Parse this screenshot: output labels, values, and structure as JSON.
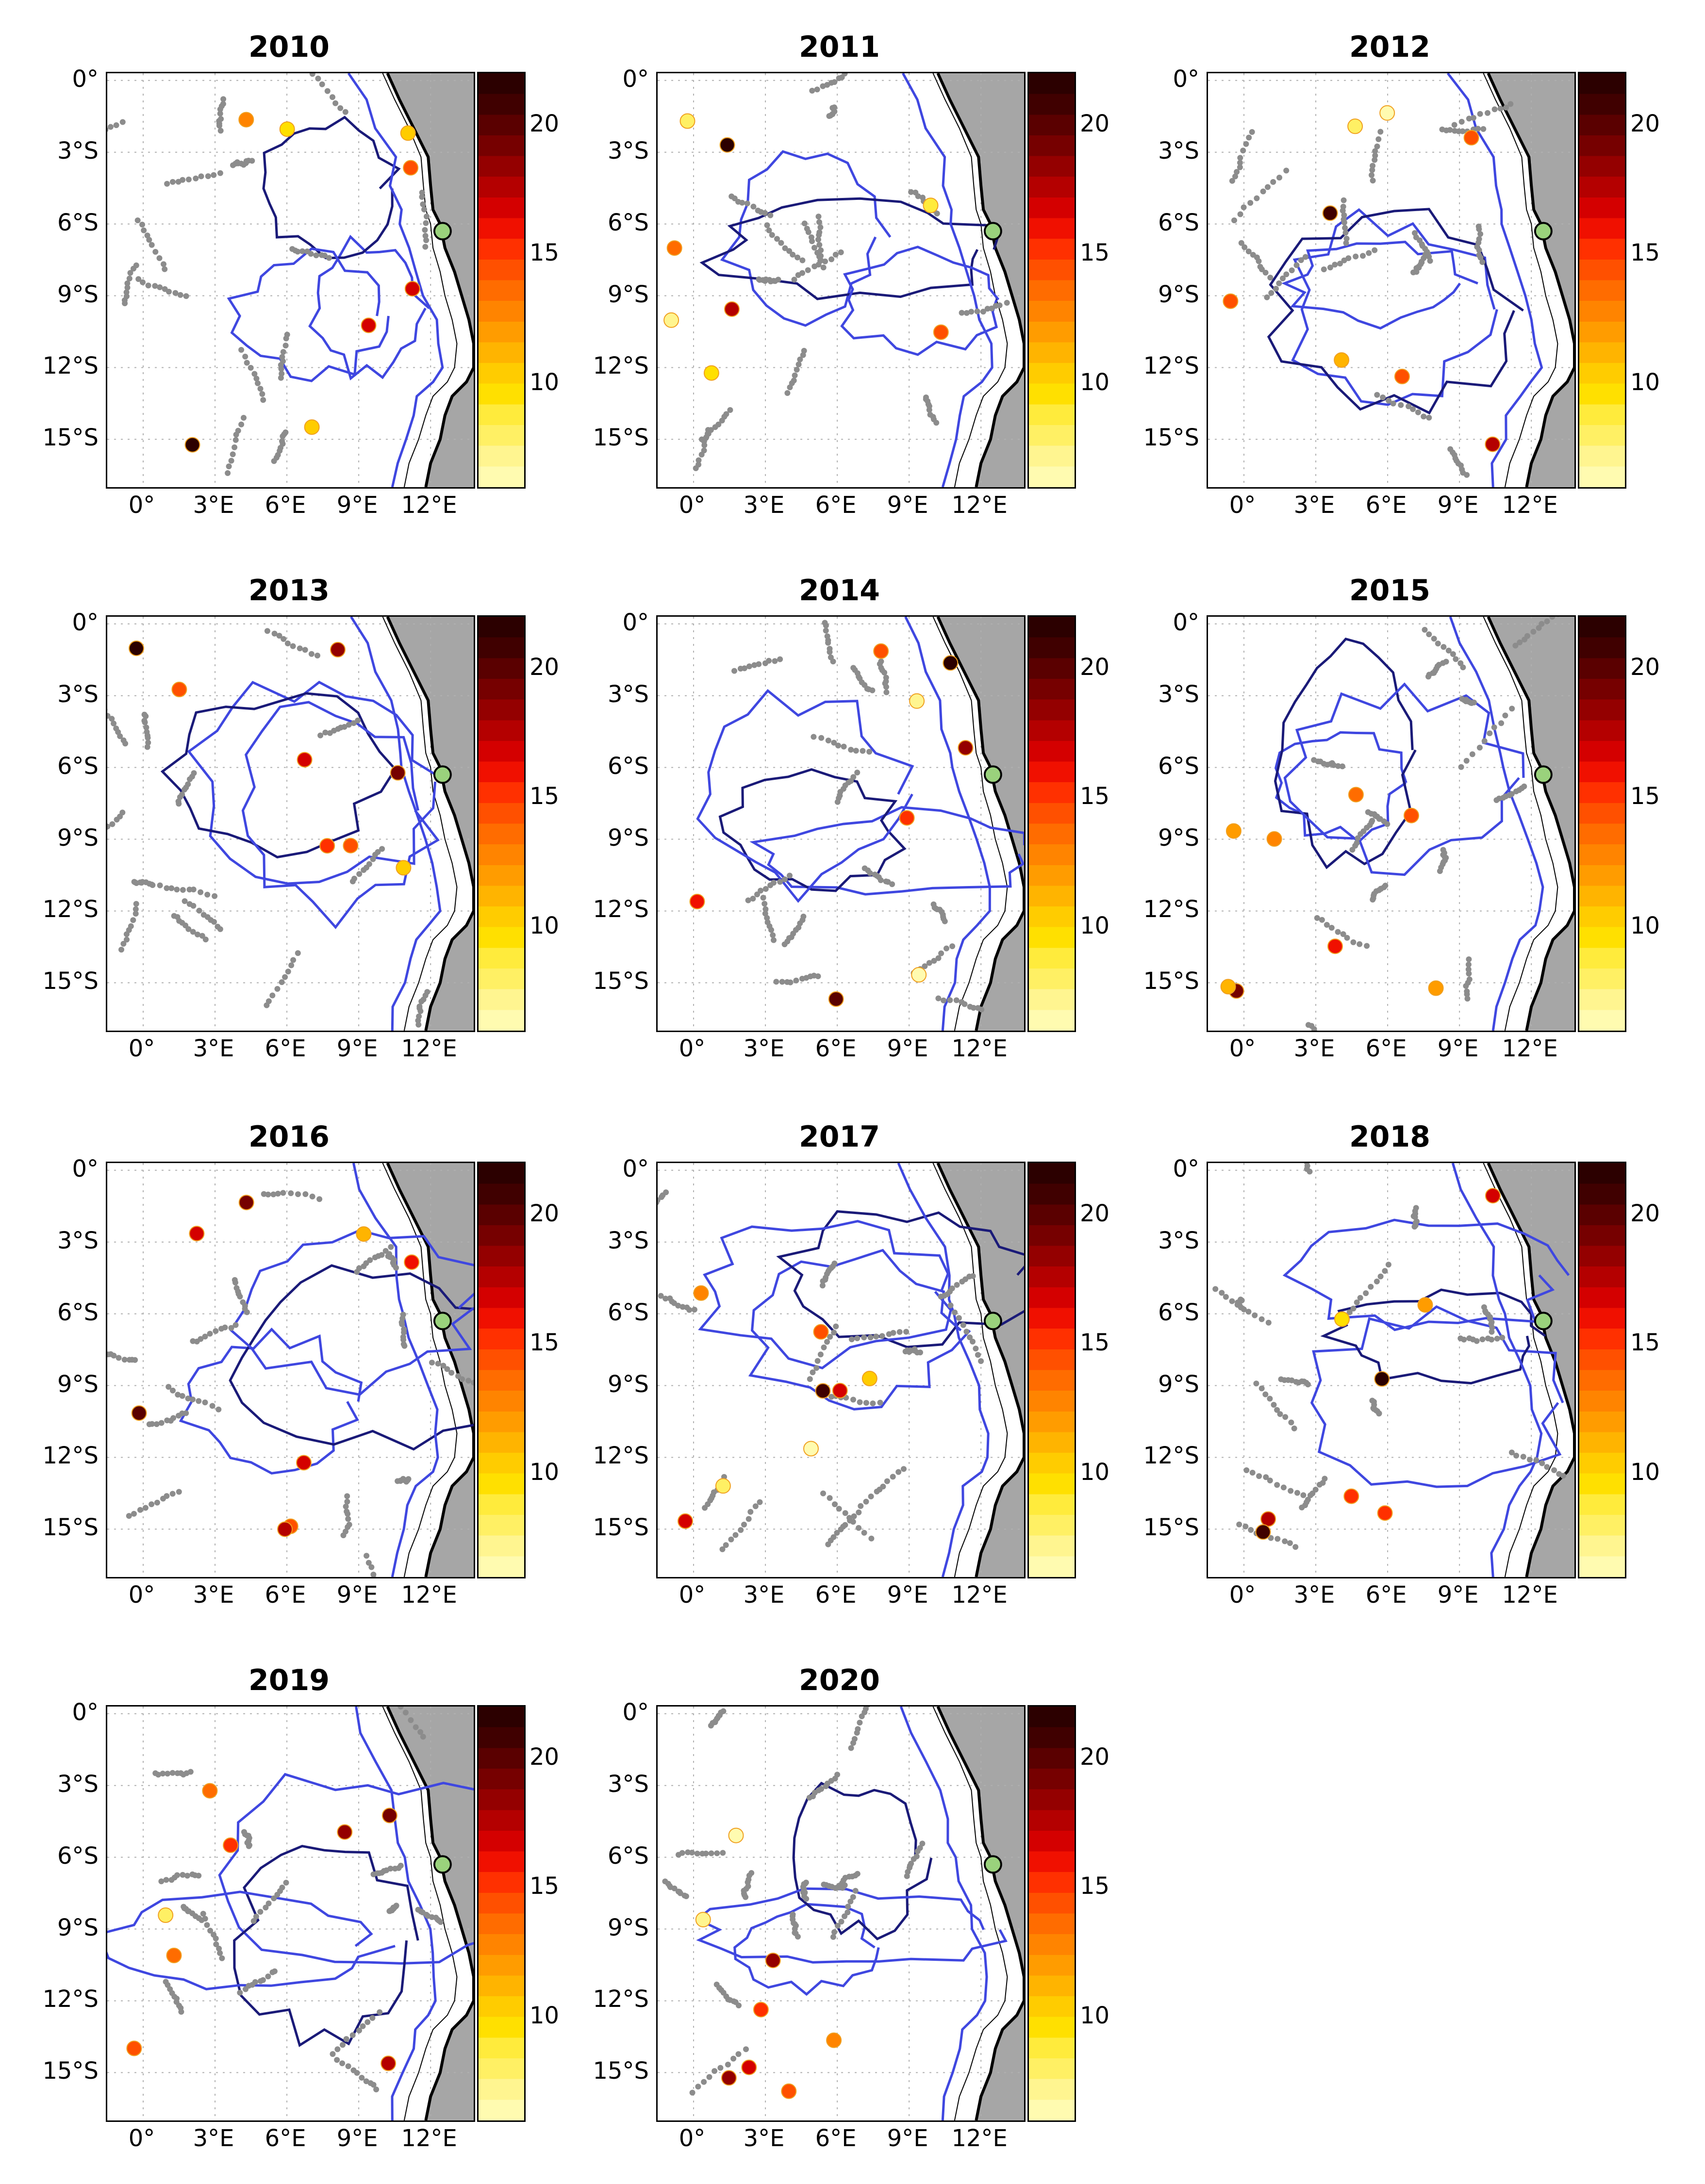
{
  "figure": {
    "panels": [
      {
        "title": "2010",
        "mooring": [
          12.5,
          -6.3
        ]
      },
      {
        "title": "2011",
        "mooring": [
          12.5,
          -6.3
        ]
      },
      {
        "title": "2012",
        "mooring": [
          12.5,
          -6.3
        ]
      },
      {
        "title": "2013",
        "mooring": [
          12.5,
          -6.3
        ]
      },
      {
        "title": "2014",
        "mooring": [
          12.5,
          -6.3
        ]
      },
      {
        "title": "2015",
        "mooring": [
          12.5,
          -6.3
        ]
      },
      {
        "title": "2016",
        "mooring": [
          12.5,
          -6.3
        ]
      },
      {
        "title": "2017",
        "mooring": [
          12.5,
          -6.3
        ]
      },
      {
        "title": "2018",
        "mooring": [
          12.5,
          -6.3
        ]
      },
      {
        "title": "2019",
        "mooring": [
          12.5,
          -6.3
        ]
      },
      {
        "title": "2020",
        "mooring": [
          12.5,
          -6.3
        ]
      }
    ],
    "lat_ticks": [
      "0°",
      "3°S",
      "6°S",
      "9°S",
      "12°S",
      "15°S"
    ],
    "lat_values": [
      0,
      -3,
      -6,
      -9,
      -12,
      -15
    ],
    "lon_ticks": [
      "0°",
      "3°E",
      "6°E",
      "9°E",
      "12°E"
    ],
    "lon_values": [
      0,
      3,
      6,
      9,
      12
    ],
    "lon_range": [
      -1.5,
      13.8
    ],
    "lat_range": [
      -17,
      0.3
    ],
    "colorbar": {
      "ticks": [
        "10",
        "15",
        "20"
      ],
      "tick_values": [
        10,
        15,
        20
      ],
      "range": [
        6,
        22
      ],
      "colors": [
        "#fffbb0",
        "#fff590",
        "#fff064",
        "#ffeb3c",
        "#ffe000",
        "#ffcc00",
        "#ffb400",
        "#ff9c00",
        "#ff8400",
        "#ff6c00",
        "#ff5000",
        "#ff3000",
        "#f01000",
        "#d40000",
        "#b40000",
        "#940000",
        "#760000",
        "#5a0000",
        "#400000",
        "#2c0000"
      ]
    },
    "colors": {
      "land": "#a6a6a6",
      "coast": "#000000",
      "contour_light": "#3f47e0",
      "contour_dark": "#1a1a78",
      "obs_points": "#8c8c8c",
      "mooring_marker": "#9ad27c",
      "track": "#e020e0"
    }
  }
}
